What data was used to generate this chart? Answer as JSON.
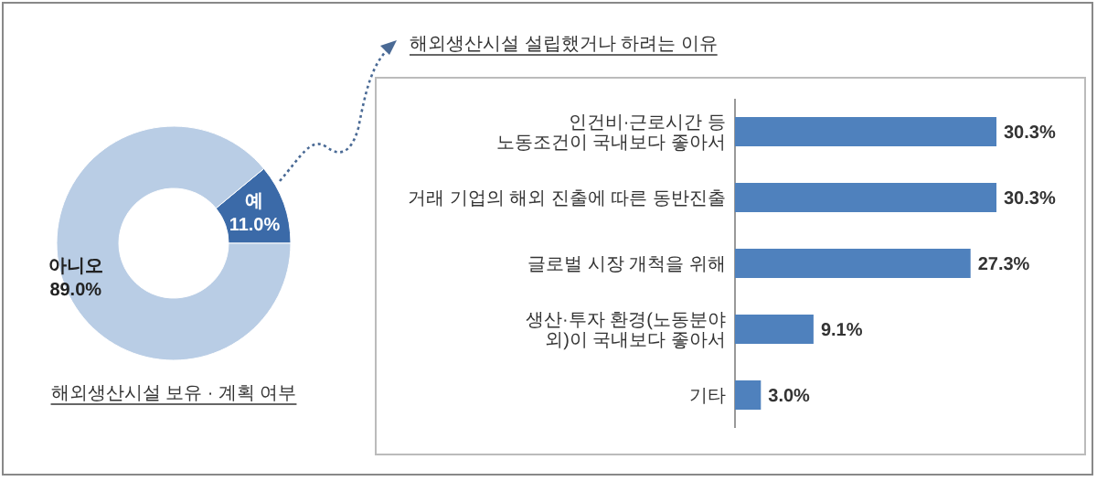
{
  "chart_data": [
    {
      "type": "donut",
      "title": "해외생산시설 보유 · 계획 여부",
      "categories": [
        "예",
        "아니오"
      ],
      "values": [
        11.0,
        89.0
      ],
      "value_labels": [
        "11.0%",
        "89.0%"
      ],
      "colors": [
        "#3b6aa8",
        "#b9cde5"
      ]
    },
    {
      "type": "bar",
      "orientation": "horizontal",
      "title": "해외생산시설 설립했거나 하려는 이유",
      "categories": [
        "인건비·근로시간 등 노동조건이 국내보다 좋아서",
        "거래 기업의 해외 진출에 따른 동반진출",
        "글로벌 시장 개척을 위해",
        "생산·투자 환경(노동분야 외)이 국내보다 좋아서",
        "기타"
      ],
      "values": [
        30.3,
        30.3,
        27.3,
        9.1,
        3.0
      ],
      "value_labels": [
        "30.3%",
        "30.3%",
        "27.3%",
        "9.1%",
        "3.0%"
      ],
      "color": "#4f81bd"
    }
  ]
}
